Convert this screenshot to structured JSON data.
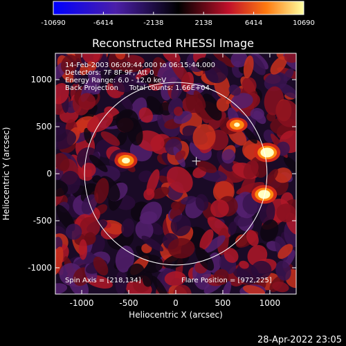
{
  "chart_data": {
    "type": "heatmap",
    "title": "Reconstructed RHESSI Image",
    "xlabel": "Heliocentric X (arcsec)",
    "ylabel": "Heliocentric Y (arcsec)",
    "xlim": [
      -1280,
      1280
    ],
    "ylim": [
      -1280,
      1280
    ],
    "x_ticks": [
      "-1000",
      "-500",
      "0",
      "500",
      "1000"
    ],
    "x_tick_values": [
      -1000,
      -500,
      0,
      500,
      1000
    ],
    "y_ticks": [
      "1000",
      "500",
      "0",
      "-500",
      "-1000"
    ],
    "y_tick_values": [
      1000,
      500,
      0,
      -500,
      -1000
    ],
    "colorbar": {
      "ticks": [
        "-10690",
        "-6414",
        "-2138",
        "2138",
        "6414",
        "10690"
      ],
      "range": [
        -10690,
        10690
      ]
    },
    "annotations": [
      "14-Feb-2003 06:09:44.000 to 06:15:44.000",
      "Detectors: 7F 8F 9F, Att 0",
      "Energy Range: 6.0 - 12.0 keV",
      "Back Projection     Total counts: 1.66E+04"
    ],
    "spin_axis": "Spin Axis = [218,134]",
    "flare_position": "Flare Position = [972,225]",
    "limb_radius_arcsec": 970,
    "cross_center": [
      218,
      134
    ],
    "sources": [
      {
        "x": 972,
        "y": 225,
        "value": 10690
      },
      {
        "x": 940,
        "y": -220,
        "value": 9800
      },
      {
        "x": -530,
        "y": 140,
        "value": 6400
      },
      {
        "x": 650,
        "y": 520,
        "value": 4200
      }
    ]
  },
  "footer": {
    "timestamp": "28-Apr-2022 23:05"
  }
}
